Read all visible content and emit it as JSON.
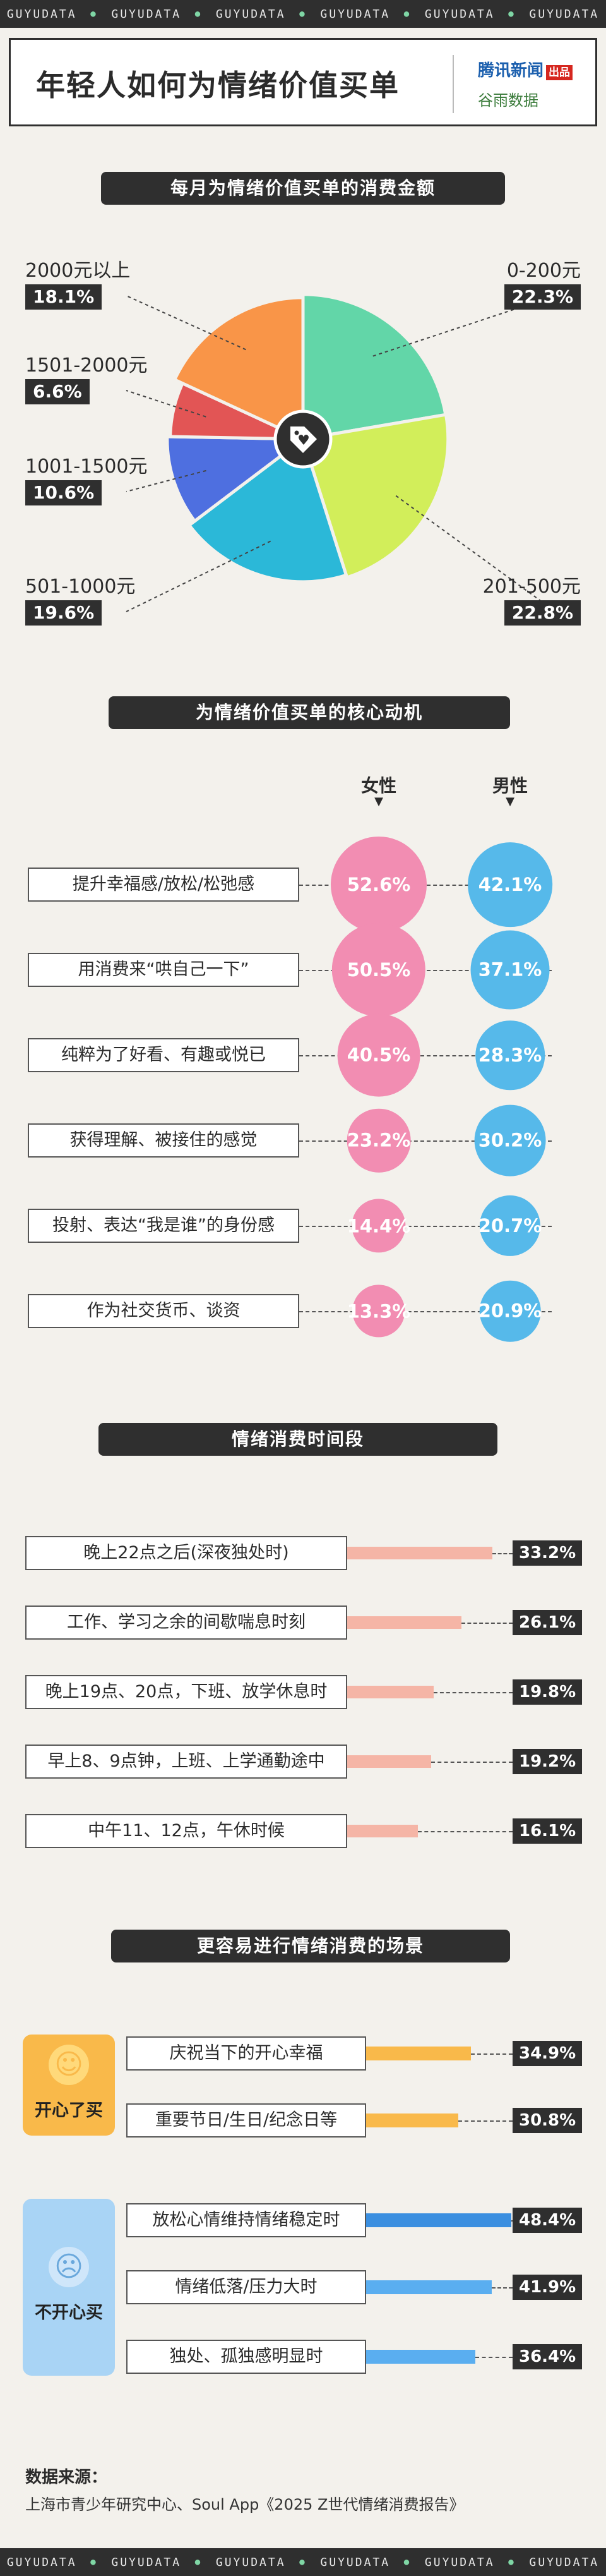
{
  "brand": {
    "strip_text": "GUYUDATA"
  },
  "header": {
    "title": "年轻人如何为情绪价值买单",
    "logo_tencent": "腾讯新闻",
    "logo_tencent_tag": "出品",
    "logo_guyu": "谷雨数据"
  },
  "colors": {
    "dark": "#2f2f2f",
    "pink": "#f28db2",
    "blue": "#56b9ea",
    "salmon": "#f5b5a6",
    "orange": "#f9b94a",
    "strong_blue": "#3b8fe0",
    "light_blue": "#5aaef0"
  },
  "sections": {
    "spend": "每月为情绪价值买单的消费金额",
    "motive": "为情绪价值买单的核心动机",
    "time": "情绪消费时间段",
    "scene": "更容易进行情绪消费的场景"
  },
  "chart_data": [
    {
      "type": "pie",
      "title": "每月为情绪价值买单的消费金额",
      "slices": [
        {
          "label": "0-200元",
          "pct_text": "22.3%",
          "value": 22.3,
          "color": "#62d6a8"
        },
        {
          "label": "201-500元",
          "pct_text": "22.8%",
          "value": 22.8,
          "color": "#d2ee5a"
        },
        {
          "label": "501-1000元",
          "pct_text": "19.6%",
          "value": 19.6,
          "color": "#2bb8d8"
        },
        {
          "label": "1001-1500元",
          "pct_text": "10.6%",
          "value": 10.6,
          "color": "#4e6fe0"
        },
        {
          "label": "1501-2000元",
          "pct_text": "6.6%",
          "value": 6.6,
          "color": "#e25555"
        },
        {
          "label": "2000元以上",
          "pct_text": "18.1%",
          "value": 18.1,
          "color": "#f99548"
        }
      ],
      "icon": "price-tag-heart-icon"
    },
    {
      "type": "scatter",
      "title": "为情绪价值买单的核心动机",
      "categories": [
        "提升幸福感/放松/松弛感",
        "用消费来“哄自己一下”",
        "纯粹为了好看、有趣或悦已",
        "获得理解、被接住的感觉",
        "投射、表达“我是谁”的身份感",
        "作为社交货币、谈资"
      ],
      "series": [
        {
          "name": "女性",
          "values": [
            52.6,
            50.5,
            40.5,
            23.2,
            14.4,
            13.3
          ],
          "labels": [
            "52.6%",
            "50.5%",
            "40.5%",
            "23.2%",
            "14.4%",
            "13.3%"
          ],
          "color": "#f28db2"
        },
        {
          "name": "男性",
          "values": [
            42.1,
            37.1,
            28.3,
            30.2,
            20.7,
            20.9
          ],
          "labels": [
            "42.1%",
            "37.1%",
            "28.3%",
            "30.2%",
            "20.7%",
            "20.9%"
          ],
          "color": "#56b9ea"
        }
      ]
    },
    {
      "type": "bar",
      "title": "情绪消费时间段",
      "categories": [
        "晚上22点之后(深夜独处时)",
        "工作、学习之余的间歇喘息时刻",
        "晚上19点、20点，下班、放学休息时",
        "早上8、9点钟，上班、上学通勤途中",
        "中午11、12点，午休时候"
      ],
      "values": [
        33.2,
        26.1,
        19.8,
        19.2,
        16.1
      ],
      "labels": [
        "33.2%",
        "26.1%",
        "19.8%",
        "19.2%",
        "16.1%"
      ]
    },
    {
      "type": "bar",
      "title": "更容易进行情绪消费的场景",
      "groups": [
        {
          "name": "开心了买",
          "icon": "smiley-face-icon",
          "categories": [
            "庆祝当下的开心幸福",
            "重要节日/生日/纪念日等"
          ],
          "values": [
            34.9,
            30.8
          ],
          "labels": [
            "34.9%",
            "30.8%"
          ]
        },
        {
          "name": "不开心买",
          "icon": "sad-face-icon",
          "categories": [
            "放松心情维持情绪稳定时",
            "情绪低落/压力大时",
            "独处、孤独感明显时"
          ],
          "values": [
            48.4,
            41.9,
            36.4
          ],
          "labels": [
            "48.4%",
            "41.9%",
            "36.4%"
          ]
        }
      ]
    }
  ],
  "source": {
    "title": "数据来源：",
    "text": "上海市青少年研究中心、Soul App《2025 Z世代情绪消费报告》"
  }
}
